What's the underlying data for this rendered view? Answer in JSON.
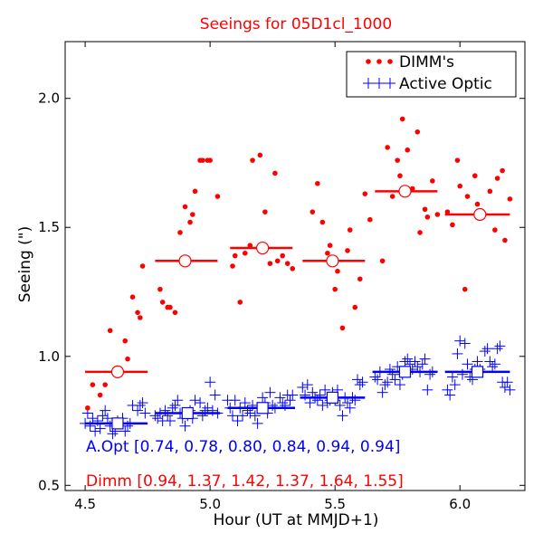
{
  "chart_data": {
    "type": "scatter",
    "title": "Seeings for 05D1cl_1000",
    "xlabel": "Hour (UT at MMJD+1)",
    "ylabel": "Seeing (\")",
    "xlim": [
      4.42,
      6.26
    ],
    "ylim": [
      0.48,
      2.22
    ],
    "xticks": [
      "4.5",
      "5.0",
      "5.5",
      "6.0"
    ],
    "yticks": [
      "0.5",
      "1.0",
      "1.5",
      "2.0"
    ],
    "grid": false,
    "legend_position": "top-right",
    "colors": {
      "dimm": "#ff0000",
      "ao": "#0000ff",
      "title": "#ff0000"
    },
    "series": [
      {
        "name": "DIMM's",
        "marker": "dot",
        "color": "#ff0000",
        "points": [
          [
            4.51,
            0.8
          ],
          [
            4.53,
            0.89
          ],
          [
            4.56,
            0.85
          ],
          [
            4.58,
            0.89
          ],
          [
            4.6,
            1.1
          ],
          [
            4.64,
            0.95
          ],
          [
            4.66,
            1.06
          ],
          [
            4.67,
            0.99
          ],
          [
            4.69,
            1.23
          ],
          [
            4.71,
            1.17
          ],
          [
            4.72,
            1.15
          ],
          [
            4.73,
            1.35
          ],
          [
            4.8,
            1.26
          ],
          [
            4.81,
            1.21
          ],
          [
            4.83,
            1.19
          ],
          [
            4.84,
            1.19
          ],
          [
            4.86,
            1.17
          ],
          [
            4.88,
            1.48
          ],
          [
            4.9,
            1.58
          ],
          [
            4.92,
            1.52
          ],
          [
            4.93,
            1.55
          ],
          [
            4.94,
            1.64
          ],
          [
            4.96,
            1.76
          ],
          [
            4.97,
            1.76
          ],
          [
            4.99,
            1.76
          ],
          [
            5.0,
            1.76
          ],
          [
            5.03,
            1.62
          ],
          [
            5.09,
            1.35
          ],
          [
            5.1,
            1.39
          ],
          [
            5.12,
            1.21
          ],
          [
            5.14,
            1.4
          ],
          [
            5.16,
            1.43
          ],
          [
            5.17,
            1.76
          ],
          [
            5.2,
            1.78
          ],
          [
            5.22,
            1.56
          ],
          [
            5.24,
            1.36
          ],
          [
            5.26,
            1.71
          ],
          [
            5.27,
            1.37
          ],
          [
            5.29,
            1.39
          ],
          [
            5.31,
            1.36
          ],
          [
            5.33,
            1.34
          ],
          [
            5.41,
            1.56
          ],
          [
            5.43,
            1.67
          ],
          [
            5.45,
            1.52
          ],
          [
            5.47,
            1.4
          ],
          [
            5.48,
            1.43
          ],
          [
            5.5,
            1.26
          ],
          [
            5.51,
            1.33
          ],
          [
            5.53,
            1.11
          ],
          [
            5.55,
            1.41
          ],
          [
            5.56,
            1.49
          ],
          [
            5.58,
            1.19
          ],
          [
            5.6,
            1.3
          ],
          [
            5.62,
            1.63
          ],
          [
            5.64,
            1.53
          ],
          [
            5.69,
            1.37
          ],
          [
            5.71,
            1.81
          ],
          [
            5.73,
            1.62
          ],
          [
            5.75,
            1.76
          ],
          [
            5.76,
            1.7
          ],
          [
            5.77,
            1.92
          ],
          [
            5.79,
            1.8
          ],
          [
            5.81,
            1.65
          ],
          [
            5.83,
            1.87
          ],
          [
            5.84,
            1.48
          ],
          [
            5.86,
            1.57
          ],
          [
            5.87,
            1.54
          ],
          [
            5.89,
            1.68
          ],
          [
            5.91,
            1.55
          ],
          [
            5.95,
            1.56
          ],
          [
            5.97,
            1.51
          ],
          [
            5.99,
            1.76
          ],
          [
            6.0,
            1.66
          ],
          [
            6.02,
            1.26
          ],
          [
            6.03,
            1.62
          ],
          [
            6.06,
            1.7
          ],
          [
            6.07,
            1.59
          ],
          [
            6.09,
            1.55
          ],
          [
            6.12,
            1.64
          ],
          [
            6.14,
            1.49
          ],
          [
            6.15,
            1.69
          ],
          [
            6.17,
            1.72
          ],
          [
            6.18,
            1.45
          ],
          [
            6.2,
            1.61
          ]
        ]
      },
      {
        "name": "Active Optic",
        "marker": "plus",
        "color": "#0000ff",
        "points": [
          [
            4.5,
            0.74
          ],
          [
            4.51,
            0.78
          ],
          [
            4.52,
            0.73
          ],
          [
            4.53,
            0.76
          ],
          [
            4.54,
            0.71
          ],
          [
            4.55,
            0.75
          ],
          [
            4.56,
            0.72
          ],
          [
            4.57,
            0.77
          ],
          [
            4.58,
            0.79
          ],
          [
            4.59,
            0.76
          ],
          [
            4.6,
            0.73
          ],
          [
            4.61,
            0.7
          ],
          [
            4.62,
            0.71
          ],
          [
            4.63,
            0.75
          ],
          [
            4.65,
            0.76
          ],
          [
            4.66,
            0.71
          ],
          [
            4.67,
            0.73
          ],
          [
            4.68,
            0.74
          ],
          [
            4.69,
            0.81
          ],
          [
            4.71,
            0.79
          ],
          [
            4.72,
            0.81
          ],
          [
            4.73,
            0.82
          ],
          [
            4.74,
            0.78
          ],
          [
            4.78,
            0.77
          ],
          [
            4.79,
            0.76
          ],
          [
            4.8,
            0.78
          ],
          [
            4.81,
            0.75
          ],
          [
            4.82,
            0.79
          ],
          [
            4.83,
            0.77
          ],
          [
            4.84,
            0.75
          ],
          [
            4.85,
            0.8
          ],
          [
            4.86,
            0.81
          ],
          [
            4.87,
            0.83
          ],
          [
            4.88,
            0.78
          ],
          [
            4.89,
            0.76
          ],
          [
            4.9,
            0.73
          ],
          [
            4.91,
            0.77
          ],
          [
            4.92,
            0.79
          ],
          [
            4.93,
            0.76
          ],
          [
            4.94,
            0.83
          ],
          [
            4.96,
            0.82
          ],
          [
            4.97,
            0.77
          ],
          [
            4.98,
            0.79
          ],
          [
            4.99,
            0.8
          ],
          [
            5.0,
            0.9
          ],
          [
            5.01,
            0.79
          ],
          [
            5.02,
            0.85
          ],
          [
            5.03,
            0.78
          ],
          [
            5.07,
            0.83
          ],
          [
            5.08,
            0.8
          ],
          [
            5.09,
            0.77
          ],
          [
            5.1,
            0.83
          ],
          [
            5.11,
            0.75
          ],
          [
            5.12,
            0.8
          ],
          [
            5.13,
            0.77
          ],
          [
            5.14,
            0.82
          ],
          [
            5.15,
            0.79
          ],
          [
            5.16,
            0.78
          ],
          [
            5.17,
            0.81
          ],
          [
            5.18,
            0.77
          ],
          [
            5.19,
            0.74
          ],
          [
            5.2,
            0.8
          ],
          [
            5.21,
            0.84
          ],
          [
            5.22,
            0.82
          ],
          [
            5.23,
            0.78
          ],
          [
            5.24,
            0.86
          ],
          [
            5.25,
            0.81
          ],
          [
            5.26,
            0.8
          ],
          [
            5.28,
            0.84
          ],
          [
            5.29,
            0.82
          ],
          [
            5.3,
            0.81
          ],
          [
            5.31,
            0.85
          ],
          [
            5.32,
            0.83
          ],
          [
            5.33,
            0.85
          ],
          [
            5.37,
            0.88
          ],
          [
            5.38,
            0.85
          ],
          [
            5.39,
            0.89
          ],
          [
            5.4,
            0.82
          ],
          [
            5.41,
            0.86
          ],
          [
            5.42,
            0.84
          ],
          [
            5.43,
            0.83
          ],
          [
            5.44,
            0.85
          ],
          [
            5.45,
            0.81
          ],
          [
            5.46,
            0.87
          ],
          [
            5.47,
            0.82
          ],
          [
            5.48,
            0.83
          ],
          [
            5.49,
            0.86
          ],
          [
            5.5,
            0.83
          ],
          [
            5.51,
            0.87
          ],
          [
            5.52,
            0.81
          ],
          [
            5.53,
            0.77
          ],
          [
            5.54,
            0.84
          ],
          [
            5.55,
            0.82
          ],
          [
            5.56,
            0.8
          ],
          [
            5.57,
            0.84
          ],
          [
            5.58,
            0.83
          ],
          [
            5.59,
            0.91
          ],
          [
            5.6,
            0.89
          ],
          [
            5.61,
            0.9
          ],
          [
            5.66,
            0.92
          ],
          [
            5.67,
            0.91
          ],
          [
            5.68,
            0.94
          ],
          [
            5.69,
            0.86
          ],
          [
            5.7,
            0.89
          ],
          [
            5.71,
            0.9
          ],
          [
            5.72,
            0.95
          ],
          [
            5.73,
            0.93
          ],
          [
            5.74,
            0.91
          ],
          [
            5.75,
            0.96
          ],
          [
            5.76,
            0.89
          ],
          [
            5.77,
            0.93
          ],
          [
            5.78,
            0.98
          ],
          [
            5.79,
            0.99
          ],
          [
            5.8,
            0.97
          ],
          [
            5.81,
            0.95
          ],
          [
            5.82,
            0.98
          ],
          [
            5.83,
            0.96
          ],
          [
            5.84,
            0.94
          ],
          [
            5.85,
            0.97
          ],
          [
            5.86,
            0.99
          ],
          [
            5.87,
            0.87
          ],
          [
            5.88,
            0.93
          ],
          [
            5.89,
            0.94
          ],
          [
            5.95,
            0.87
          ],
          [
            5.96,
            0.85
          ],
          [
            5.97,
            0.92
          ],
          [
            5.98,
            0.89
          ],
          [
            5.99,
            1.01
          ],
          [
            6.0,
            1.06
          ],
          [
            6.01,
            0.93
          ],
          [
            6.02,
            1.05
          ],
          [
            6.03,
            0.97
          ],
          [
            6.04,
            0.92
          ],
          [
            6.05,
            0.91
          ],
          [
            6.06,
            0.95
          ],
          [
            6.07,
            0.98
          ],
          [
            6.08,
            0.95
          ],
          [
            6.09,
            0.94
          ],
          [
            6.1,
            1.02
          ],
          [
            6.11,
            1.03
          ],
          [
            6.12,
            0.98
          ],
          [
            6.13,
            0.96
          ],
          [
            6.14,
            0.97
          ],
          [
            6.15,
            1.03
          ],
          [
            6.16,
            1.04
          ],
          [
            6.17,
            0.9
          ],
          [
            6.18,
            0.88
          ],
          [
            6.19,
            0.9
          ],
          [
            6.2,
            0.87
          ]
        ]
      }
    ],
    "bin_means": [
      {
        "name": "A.Opt",
        "marker": "square",
        "color": "#0000ff",
        "bins": [
          {
            "x0": 4.5,
            "x1": 4.75,
            "x": 4.63,
            "y": 0.74
          },
          {
            "x0": 4.78,
            "x1": 5.04,
            "x": 4.91,
            "y": 0.78
          },
          {
            "x0": 5.07,
            "x1": 5.34,
            "x": 5.21,
            "y": 0.8
          },
          {
            "x0": 5.36,
            "x1": 5.62,
            "x": 5.49,
            "y": 0.84
          },
          {
            "x0": 5.65,
            "x1": 5.91,
            "x": 5.78,
            "y": 0.94
          },
          {
            "x0": 5.94,
            "x1": 6.2,
            "x": 6.07,
            "y": 0.94
          }
        ]
      },
      {
        "name": "Dimm",
        "marker": "circle",
        "color": "#ff0000",
        "bins": [
          {
            "x0": 4.5,
            "x1": 4.75,
            "x": 4.63,
            "y": 0.94
          },
          {
            "x0": 4.78,
            "x1": 5.03,
            "x": 4.9,
            "y": 1.37
          },
          {
            "x0": 5.08,
            "x1": 5.33,
            "x": 5.21,
            "y": 1.42
          },
          {
            "x0": 5.37,
            "x1": 5.62,
            "x": 5.49,
            "y": 1.37
          },
          {
            "x0": 5.66,
            "x1": 5.91,
            "x": 5.78,
            "y": 1.64
          },
          {
            "x0": 5.94,
            "x1": 6.2,
            "x": 6.08,
            "y": 1.55
          }
        ]
      }
    ],
    "annotations": [
      {
        "text": "A.Opt [0.74, 0.78, 0.80, 0.84, 0.94, 0.94]",
        "color": "#0000ff"
      },
      {
        "text": "Dimm [0.94, 1.37, 1.42, 1.37, 1.64, 1.55]",
        "color": "#ff0000"
      }
    ]
  }
}
